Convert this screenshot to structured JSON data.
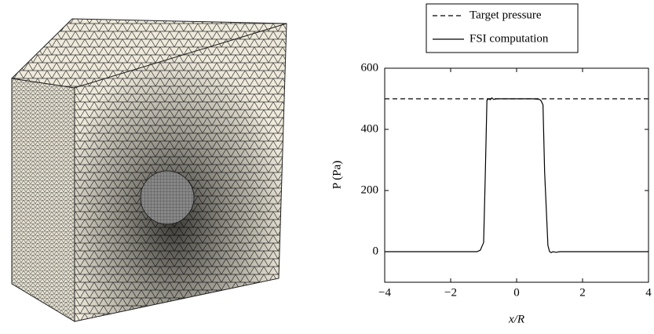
{
  "chart_data": {
    "type": "line",
    "xlabel": "x/R",
    "ylabel": "P (Pa)",
    "xlim": [
      -4,
      4
    ],
    "ylim": [
      -100,
      600
    ],
    "xticks": [
      {
        "value": -4,
        "label": "−4"
      },
      {
        "value": -2,
        "label": "−2"
      },
      0,
      2,
      4
    ],
    "yticks": [
      0,
      200,
      400,
      600
    ],
    "legend": "top",
    "series": [
      {
        "name": "Target pressure",
        "color": "#000000",
        "dashed": true,
        "x": [
          -4,
          4
        ],
        "values": [
          500,
          500
        ]
      },
      {
        "name": "FSI computation",
        "color": "#000000",
        "dashed": false,
        "x": [
          -4,
          -1.2,
          -1.1,
          -1.0,
          -0.95,
          -0.9,
          -0.85,
          -0.8,
          -0.75,
          -0.7,
          -0.6,
          0,
          0.5,
          0.7,
          0.75,
          0.8,
          0.85,
          0.95,
          1.0,
          1.05,
          1.1,
          1.2,
          1.3,
          4
        ],
        "values": [
          0,
          0,
          5,
          30,
          250,
          495,
          500,
          497,
          503,
          498,
          500,
          500,
          500,
          498,
          492,
          480,
          260,
          20,
          0,
          -3,
          0,
          -2,
          0,
          0
        ]
      }
    ]
  }
}
